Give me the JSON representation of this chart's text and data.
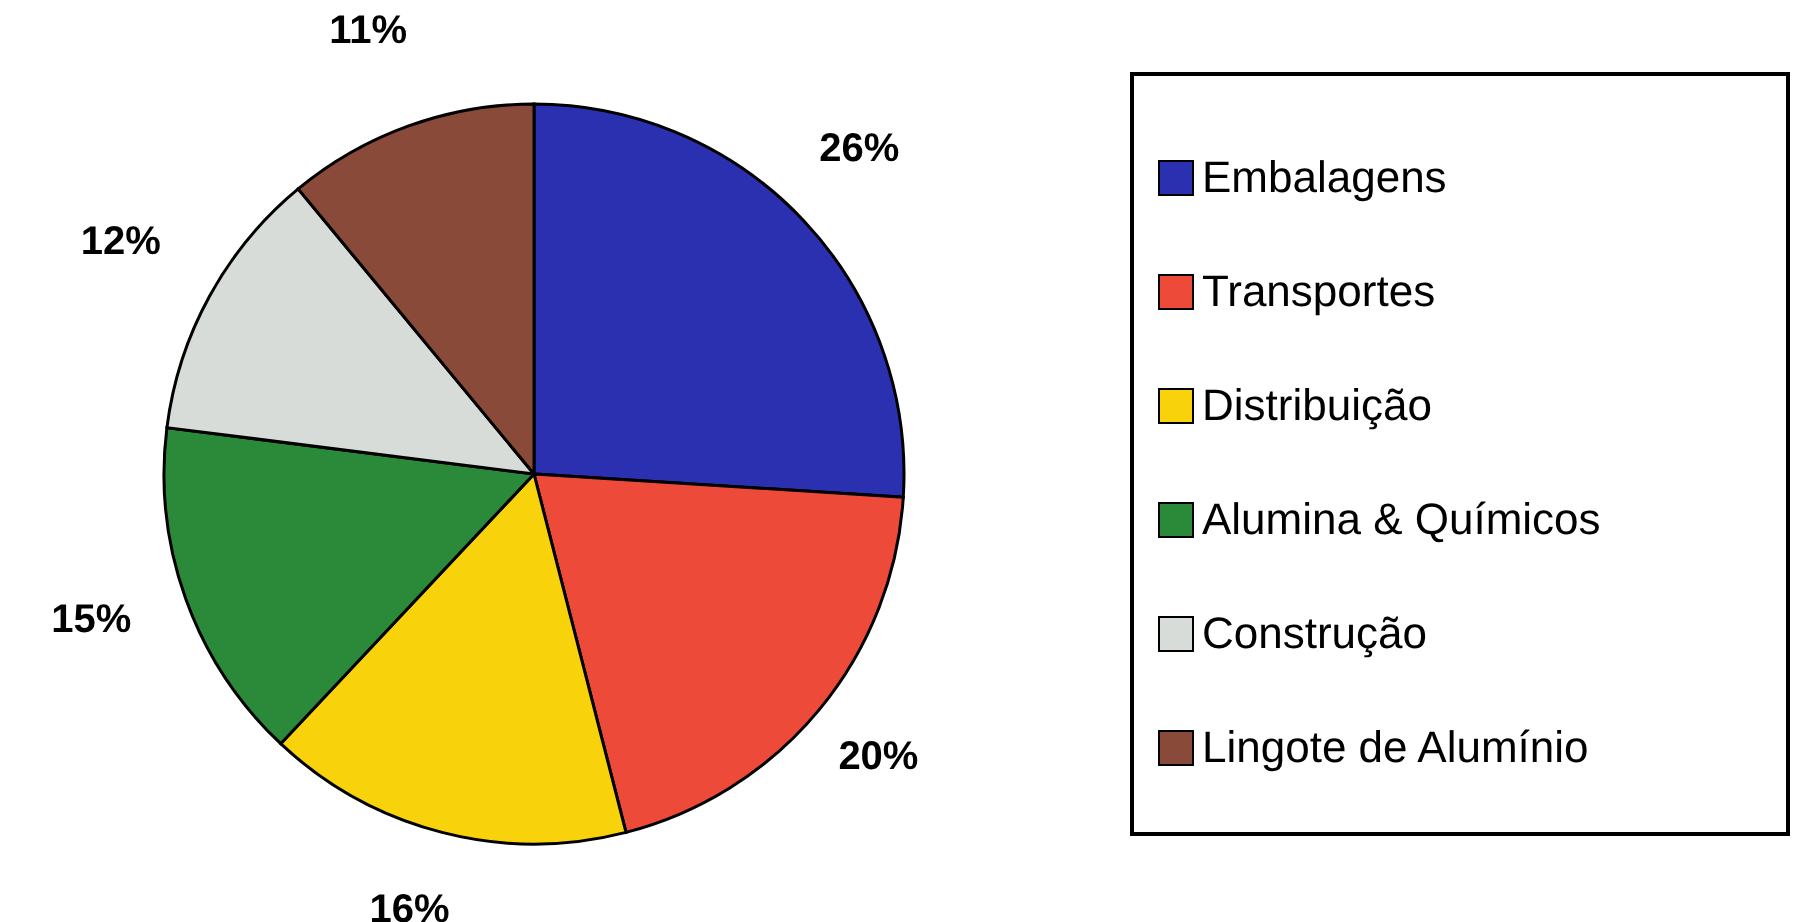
{
  "chart_data": {
    "type": "pie",
    "categories": [
      "Embalagens",
      "Transportes",
      "Distribuição",
      "Alumina & Químicos",
      "Construção",
      "Lingote de Alumínio"
    ],
    "values": [
      26,
      20,
      16,
      15,
      12,
      11
    ],
    "value_labels": [
      "26%",
      "20%",
      "16%",
      "15%",
      "12%",
      "11%"
    ],
    "colors": [
      "#2b30b0",
      "#ee4a3a",
      "#f8d20a",
      "#2a8a3a",
      "#d8dcd8",
      "#8a4a3a"
    ],
    "legend": "right"
  }
}
